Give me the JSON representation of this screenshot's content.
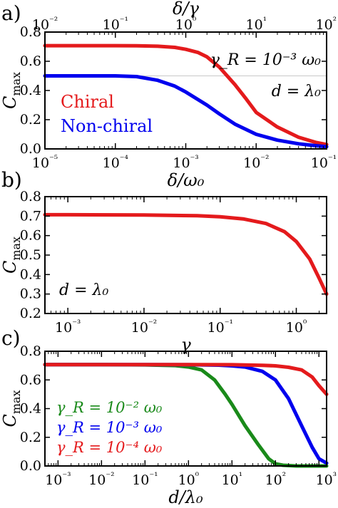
{
  "chart_data": [
    {
      "panel_label": "a)",
      "type": "line",
      "xscale": "log",
      "xlim": [
        1e-05,
        0.1
      ],
      "ylim": [
        0,
        0.8
      ],
      "xlabel": "δ/ω₀",
      "ylabel": "C_max",
      "top_xlabel": "δ/γ",
      "top_xlim": [
        0.01,
        100.0
      ],
      "x_ticks": [
        "10⁻⁵",
        "10⁻⁴",
        "10⁻³",
        "10⁻²",
        "10⁻¹"
      ],
      "top_x_ticks": [
        "10⁻²",
        "10⁻¹",
        "10⁰",
        "10¹",
        "10²"
      ],
      "y_ticks": [
        "0.0",
        "0.2",
        "0.4",
        "0.6",
        "0.8"
      ],
      "annotations": [
        "γ_R = 10⁻³ ω₀",
        "d = λ₀"
      ],
      "legend_placement": "left",
      "reference_line_y": 0.5,
      "series": [
        {
          "name": "Chiral",
          "color": "#e41a1c",
          "x": [
            1e-05,
            2e-05,
            5e-05,
            0.0001,
            0.0002,
            0.0004,
            0.0007,
            0.001,
            0.0015,
            0.002,
            0.003,
            0.005,
            0.007,
            0.01,
            0.02,
            0.04,
            0.07,
            0.1
          ],
          "y": [
            0.707,
            0.707,
            0.707,
            0.707,
            0.706,
            0.703,
            0.695,
            0.682,
            0.66,
            0.63,
            0.56,
            0.44,
            0.35,
            0.25,
            0.15,
            0.08,
            0.045,
            0.03
          ]
        },
        {
          "name": "Non-chiral",
          "color": "#0000ee",
          "x": [
            1e-05,
            2e-05,
            5e-05,
            0.0001,
            0.0002,
            0.0004,
            0.0007,
            0.001,
            0.002,
            0.003,
            0.005,
            0.01,
            0.02,
            0.04,
            0.07,
            0.1
          ],
          "y": [
            0.5,
            0.5,
            0.5,
            0.5,
            0.495,
            0.47,
            0.43,
            0.39,
            0.3,
            0.24,
            0.17,
            0.1,
            0.06,
            0.035,
            0.022,
            0.015
          ]
        }
      ]
    },
    {
      "panel_label": "b)",
      "type": "line",
      "xscale": "log",
      "xlim": [
        0.0005,
        2.5
      ],
      "ylim": [
        0.2,
        0.8
      ],
      "xlabel": "γ",
      "ylabel": "C_max",
      "x_ticks": [
        "10⁻³",
        "10⁻²",
        "10⁻¹",
        "10⁰"
      ],
      "y_ticks": [
        "0.2",
        "0.3",
        "0.4",
        "0.5",
        "0.6",
        "0.7",
        "0.8"
      ],
      "annotations": [
        "d = λ₀"
      ],
      "series": [
        {
          "color": "#e41a1c",
          "x": [
            0.0005,
            0.001,
            0.01,
            0.05,
            0.1,
            0.2,
            0.4,
            0.7,
            1,
            1.5,
            2,
            2.5
          ],
          "y": [
            0.707,
            0.707,
            0.706,
            0.702,
            0.697,
            0.686,
            0.662,
            0.62,
            0.57,
            0.48,
            0.38,
            0.3
          ]
        }
      ]
    },
    {
      "panel_label": "c)",
      "type": "line",
      "xscale": "log",
      "xlim": [
        0.0005,
        1500.0
      ],
      "ylim": [
        0,
        0.8
      ],
      "xlabel": "d/λ₀",
      "ylabel": "C_max",
      "x_ticks": [
        "10⁻³",
        "10⁻²",
        "10⁻¹",
        "10⁰",
        "10¹",
        "10²",
        "10³"
      ],
      "y_ticks": [
        "0.0",
        "0.2",
        "0.4",
        "0.6",
        "0.8"
      ],
      "legend_placement": "bottom-left",
      "series": [
        {
          "name": "γ_R = 10⁻² ω₀",
          "color": "#1a8a1a",
          "x": [
            0.0005,
            0.01,
            0.1,
            0.5,
            1,
            2,
            4,
            7,
            10,
            20,
            40,
            70,
            100,
            150,
            300,
            1500.0
          ],
          "y": [
            0.707,
            0.707,
            0.705,
            0.7,
            0.69,
            0.67,
            0.6,
            0.5,
            0.43,
            0.28,
            0.15,
            0.05,
            0.015,
            0.005,
            0,
            0
          ]
        },
        {
          "name": "γ_R = 10⁻³ ω₀",
          "color": "#0000ee",
          "x": [
            0.0005,
            0.1,
            1,
            5,
            10,
            20,
            50,
            100,
            200,
            400,
            700,
            1000,
            1500.0
          ],
          "y": [
            0.707,
            0.707,
            0.706,
            0.703,
            0.698,
            0.69,
            0.66,
            0.6,
            0.47,
            0.28,
            0.13,
            0.05,
            0.02
          ]
        },
        {
          "name": "γ_R = 10⁻⁴ ω₀",
          "color": "#e41a1c",
          "x": [
            0.0005,
            1,
            10,
            50,
            100,
            200,
            400,
            700,
            1000,
            1500.0
          ],
          "y": [
            0.707,
            0.707,
            0.706,
            0.702,
            0.698,
            0.688,
            0.67,
            0.62,
            0.56,
            0.5
          ]
        }
      ]
    }
  ]
}
